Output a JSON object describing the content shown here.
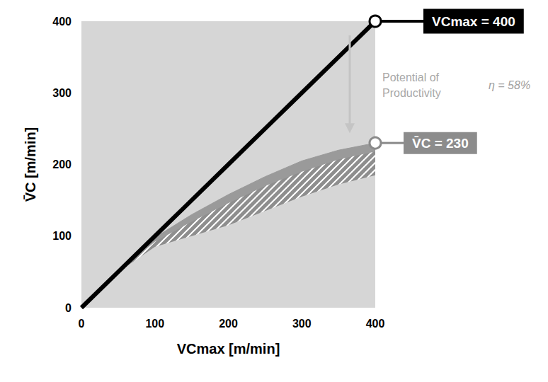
{
  "chart_data": {
    "type": "line",
    "x_label": "VCmax [m/min]",
    "y_label": "V̄C [m/min]",
    "x": [
      0,
      50,
      100,
      150,
      200,
      250,
      300,
      350,
      400
    ],
    "xlim": [
      0,
      400
    ],
    "xticks": [
      0,
      100,
      200,
      300,
      400
    ],
    "ylim": [
      0,
      400
    ],
    "yticks": [
      0,
      100,
      200,
      300,
      400
    ],
    "grid": false,
    "series": [
      {
        "type": "area",
        "color": "#9a9a9a",
        "marker": "circle",
        "values": [
          0,
          50,
          98,
          130,
          158,
          183,
          205,
          220,
          230
        ]
      },
      {
        "type": "hatch",
        "color": "#8e8e8e",
        "values": [
          0,
          50,
          92,
          120,
          146,
          170,
          190,
          207,
          218
        ]
      },
      {
        "type": "mask",
        "values": [
          0,
          50,
          85,
          100,
          115,
          135,
          155,
          172,
          185
        ]
      },
      {
        "type": "line",
        "color": "#000000",
        "marker": "circle",
        "values": [
          0,
          50,
          100,
          150,
          200,
          250,
          300,
          350,
          400
        ]
      }
    ],
    "annotations": [
      "VCmax = 400",
      "V̄C = 230",
      "Potential of Productivity",
      "η = 58%"
    ]
  }
}
